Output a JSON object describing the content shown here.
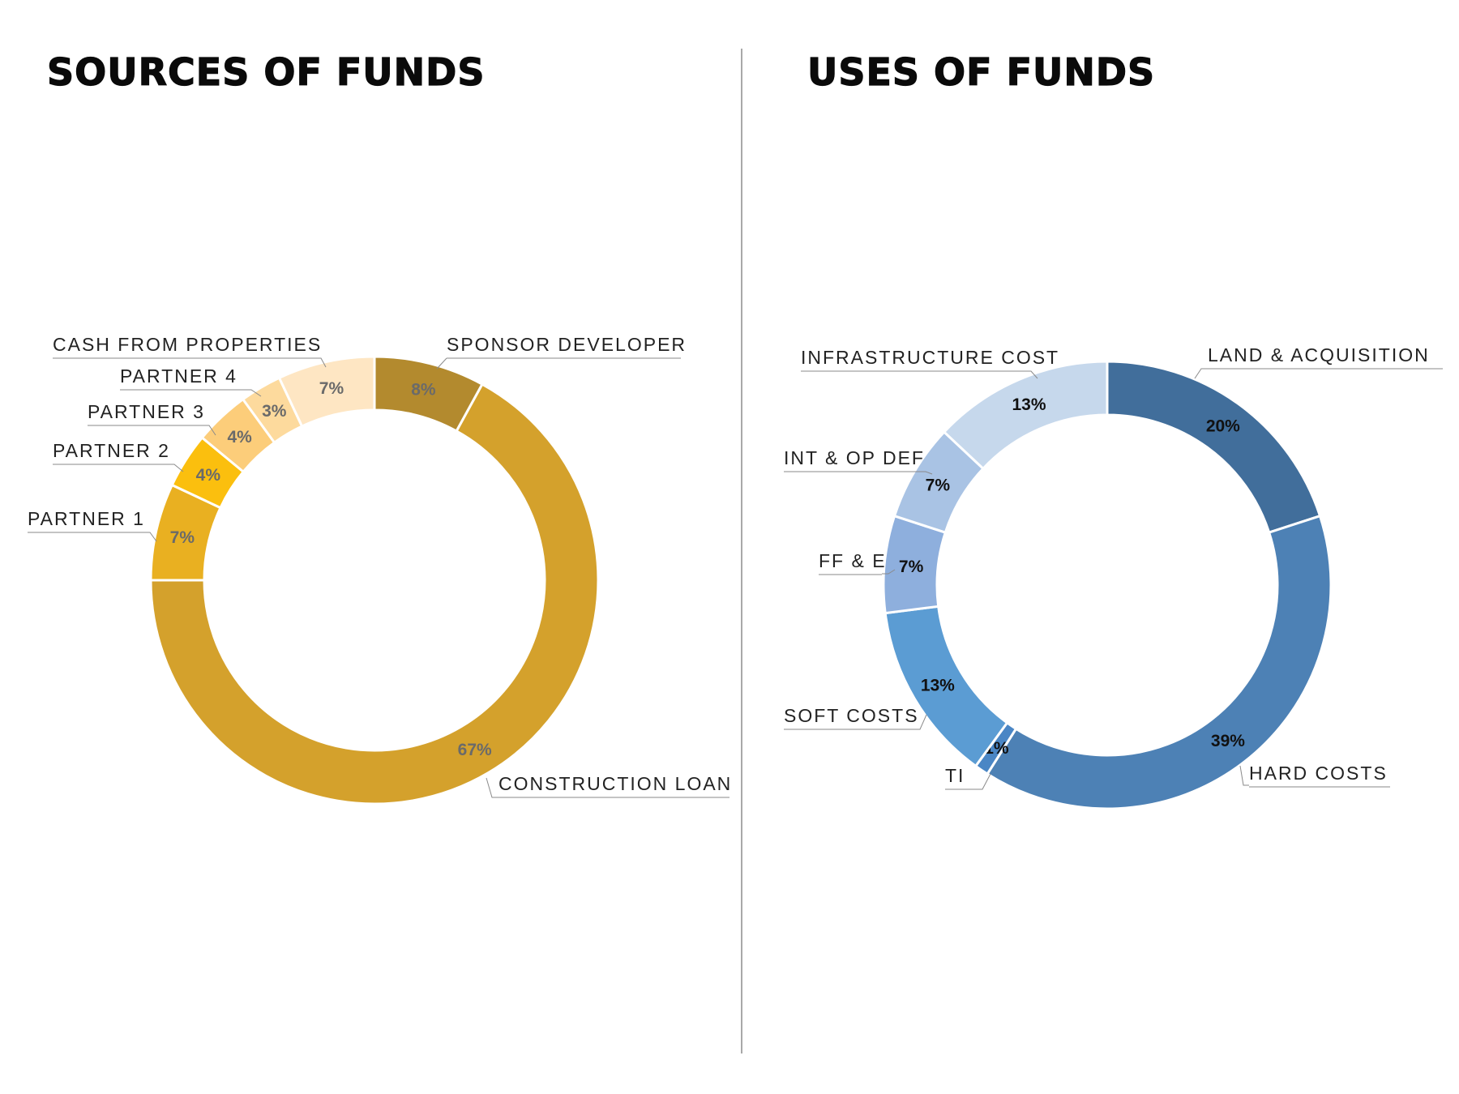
{
  "chart_data": [
    {
      "type": "donut",
      "title": "SOURCES OF FUNDS",
      "slices": [
        {
          "name": "SPONSOR DEVELOPER",
          "value": 8,
          "value_label": "8%",
          "color": "#B38A2E",
          "label_color": "#6a6a6a"
        },
        {
          "name": "CONSTRUCTION LOAN",
          "value": 67,
          "value_label": "67%",
          "color": "#D4A12C",
          "label_color": "#6a6a6a"
        },
        {
          "name": "PARTNER 1",
          "value": 7,
          "value_label": "7%",
          "color": "#E9B021",
          "label_color": "#6a6a6a"
        },
        {
          "name": "PARTNER 2",
          "value": 4,
          "value_label": "4%",
          "color": "#FBBF0E",
          "label_color": "#6a6a6a"
        },
        {
          "name": "PARTNER 3",
          "value": 4,
          "value_label": "4%",
          "color": "#FCCD7A",
          "label_color": "#6a6a6a"
        },
        {
          "name": "PARTNER 4",
          "value": 3,
          "value_label": "3%",
          "color": "#FDDA9D",
          "label_color": "#6a6a6a"
        },
        {
          "name": "CASH FROM PROPERTIES",
          "value": 7,
          "value_label": "7%",
          "color": "#FEE6C3",
          "label_color": "#6a6a6a"
        }
      ]
    },
    {
      "type": "donut",
      "title": "USES OF FUNDS",
      "slices": [
        {
          "name": "LAND & ACQUISITION",
          "value": 20,
          "value_label": "20%",
          "color": "#416E9B",
          "label_color": "#111111"
        },
        {
          "name": "HARD COSTS",
          "value": 39,
          "value_label": "39%",
          "color": "#4D81B5",
          "label_color": "#111111"
        },
        {
          "name": "TI",
          "value": 1,
          "value_label": "1%",
          "color": "#4A86C5",
          "label_color": "#111111"
        },
        {
          "name": "SOFT COSTS",
          "value": 13,
          "value_label": "13%",
          "color": "#5B9CD3",
          "label_color": "#111111"
        },
        {
          "name": "FF & E",
          "value": 7,
          "value_label": "7%",
          "color": "#8EAFDD",
          "label_color": "#111111"
        },
        {
          "name": "INT & OP DEF",
          "value": 7,
          "value_label": "7%",
          "color": "#A9C3E4",
          "label_color": "#111111"
        },
        {
          "name": "INFRASTRUCTURE COST",
          "value": 13,
          "value_label": "13%",
          "color": "#C6D8EC",
          "label_color": "#111111"
        }
      ]
    }
  ]
}
